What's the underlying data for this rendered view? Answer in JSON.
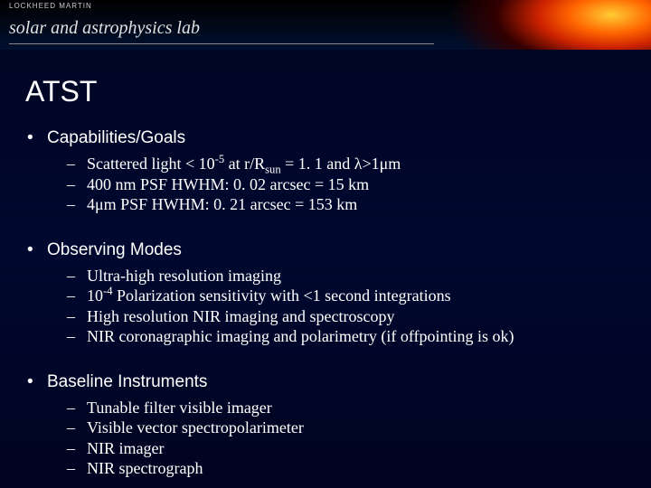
{
  "header": {
    "logo": "LOCKHEED MARTIN",
    "lab": "solar and astrophysics lab"
  },
  "title": "ATST",
  "sections": [
    {
      "heading": "Capabilities/Goals",
      "items": [
        " Scattered light < 10<sup>-5</sup> at r/R<sub>sun</sub> = 1. 1 and λ>1μm",
        "400 nm PSF HWHM: 0. 02 arcsec = 15 km",
        "4μm PSF HWHM: 0. 21 arcsec = 153 km"
      ]
    },
    {
      "heading": "Observing Modes",
      "items": [
        "Ultra-high resolution imaging",
        "10<sup>-4</sup> Polarization sensitivity with <1 second integrations",
        "High resolution NIR imaging and spectroscopy",
        "NIR coronagraphic imaging and polarimetry (if offpointing is ok)"
      ]
    },
    {
      "heading": "Baseline Instruments",
      "items": [
        "Tunable filter visible imager",
        "Visible vector spectropolarimeter",
        "NIR imager",
        "NIR spectrograph"
      ]
    }
  ],
  "colors": {
    "background_top": "#000420",
    "background_mid": "#000830",
    "text": "#ffffff",
    "sun_core": "#ffcc33",
    "sun_mid": "#ff6600",
    "sun_edge": "#cc2200"
  }
}
